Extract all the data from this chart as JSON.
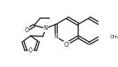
{
  "bg_color": "#ffffff",
  "bond_color": "#1a1a1a",
  "text_color": "#1a1a1a",
  "line_width": 1.1,
  "figsize": [
    1.69,
    0.96
  ],
  "dpi": 100,
  "xlim": [
    0,
    169
  ],
  "ylim": [
    0,
    96
  ]
}
